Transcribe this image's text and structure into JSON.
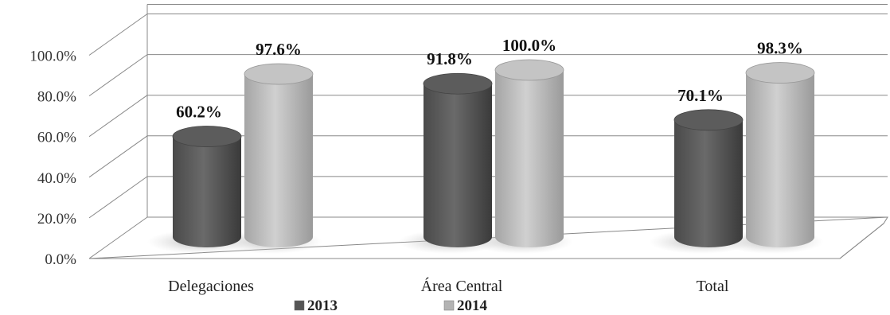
{
  "chart_data": {
    "type": "bar",
    "title": "",
    "xlabel": "",
    "ylabel": "",
    "categories": [
      "Delegaciones",
      "Área Central",
      "Total"
    ],
    "series": [
      {
        "name": "2013",
        "values": [
          60.2,
          91.8,
          70.1
        ],
        "color": "#555555"
      },
      {
        "name": "2014",
        "values": [
          97.6,
          100.0,
          98.3
        ],
        "color": "#b3b3b3"
      }
    ],
    "data_labels": [
      [
        "60.2%",
        "91.8%",
        "70.1%"
      ],
      [
        "97.6%",
        "100.0%",
        "98.3%"
      ]
    ],
    "ylim": [
      0,
      100
    ],
    "yticks": [
      "0.0%",
      "20.0%",
      "40.0%",
      "60.0%",
      "80.0%",
      "100.0%"
    ],
    "grid": true,
    "legend": "bottom",
    "style": "3d-cylinder"
  }
}
